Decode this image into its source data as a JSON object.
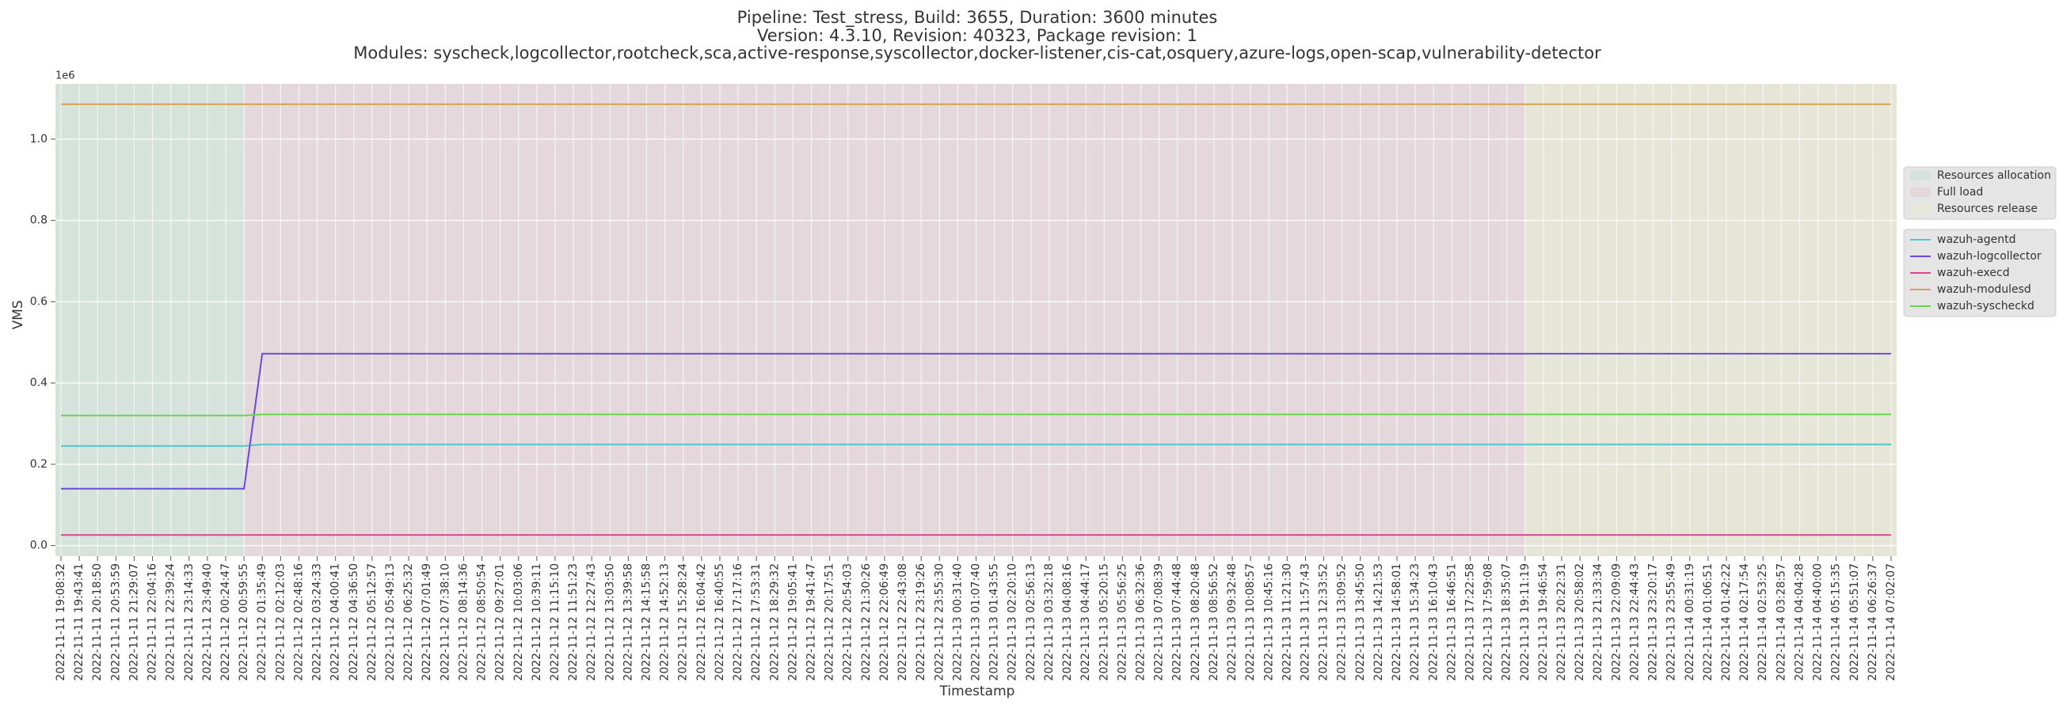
{
  "chart_data": {
    "type": "line",
    "title": [
      "Pipeline: Test_stress, Build: 3655, Duration: 3600 minutes",
      "Version: 4.3.10, Revision: 40323, Package revision: 1",
      "Modules: syscheck,logcollector,rootcheck,sca,active-response,syscollector,docker-listener,cis-cat,osquery,azure-logs,open-scap,vulnerability-detector"
    ],
    "x_label": "Timestamp",
    "y_label": "VMS",
    "y_offset_label": "1e6",
    "categories": [
      "2022-11-11 19:08:32",
      "2022-11-11 19:43:41",
      "2022-11-11 20:18:50",
      "2022-11-11 20:53:59",
      "2022-11-11 21:29:07",
      "2022-11-11 22:04:16",
      "2022-11-11 22:39:24",
      "2022-11-11 23:14:33",
      "2022-11-11 23:49:40",
      "2022-11-12 00:24:47",
      "2022-11-12 00:59:55",
      "2022-11-12 01:35:49",
      "2022-11-12 02:12:03",
      "2022-11-12 02:48:16",
      "2022-11-12 03:24:33",
      "2022-11-12 04:00:41",
      "2022-11-12 04:36:50",
      "2022-11-12 05:12:57",
      "2022-11-12 05:49:13",
      "2022-11-12 06:25:32",
      "2022-11-12 07:01:49",
      "2022-11-12 07:38:10",
      "2022-11-12 08:14:36",
      "2022-11-12 08:50:54",
      "2022-11-12 09:27:01",
      "2022-11-12 10:03:06",
      "2022-11-12 10:39:11",
      "2022-11-12 11:15:10",
      "2022-11-12 11:51:23",
      "2022-11-12 12:27:43",
      "2022-11-12 13:03:50",
      "2022-11-12 13:39:58",
      "2022-11-12 14:15:58",
      "2022-11-12 14:52:13",
      "2022-11-12 15:28:24",
      "2022-11-12 16:04:42",
      "2022-11-12 16:40:55",
      "2022-11-12 17:17:16",
      "2022-11-12 17:53:31",
      "2022-11-12 18:29:32",
      "2022-11-12 19:05:41",
      "2022-11-12 19:41:47",
      "2022-11-12 20:17:51",
      "2022-11-12 20:54:03",
      "2022-11-12 21:30:26",
      "2022-11-12 22:06:49",
      "2022-11-12 22:43:08",
      "2022-11-12 23:19:26",
      "2022-11-12 23:55:30",
      "2022-11-13 00:31:40",
      "2022-11-13 01:07:40",
      "2022-11-13 01:43:55",
      "2022-11-13 02:20:10",
      "2022-11-13 02:56:13",
      "2022-11-13 03:32:18",
      "2022-11-13 04:08:16",
      "2022-11-13 04:44:17",
      "2022-11-13 05:20:15",
      "2022-11-13 05:56:25",
      "2022-11-13 06:32:36",
      "2022-11-13 07:08:39",
      "2022-11-13 07:44:48",
      "2022-11-13 08:20:48",
      "2022-11-13 08:56:52",
      "2022-11-13 09:32:48",
      "2022-11-13 10:08:57",
      "2022-11-13 10:45:16",
      "2022-11-13 11:21:30",
      "2022-11-13 11:57:43",
      "2022-11-13 12:33:52",
      "2022-11-13 13:09:52",
      "2022-11-13 13:45:50",
      "2022-11-13 14:21:53",
      "2022-11-13 14:58:01",
      "2022-11-13 15:34:23",
      "2022-11-13 16:10:43",
      "2022-11-13 16:46:51",
      "2022-11-13 17:22:58",
      "2022-11-13 17:59:08",
      "2022-11-13 18:35:07",
      "2022-11-13 19:11:19",
      "2022-11-13 19:46:54",
      "2022-11-13 20:22:31",
      "2022-11-13 20:58:02",
      "2022-11-13 21:33:34",
      "2022-11-13 22:09:09",
      "2022-11-13 22:44:43",
      "2022-11-13 23:20:17",
      "2022-11-13 23:55:49",
      "2022-11-14 00:31:19",
      "2022-11-14 01:06:51",
      "2022-11-14 01:42:22",
      "2022-11-14 02:17:54",
      "2022-11-14 02:53:25",
      "2022-11-14 03:28:57",
      "2022-11-14 04:04:28",
      "2022-11-14 04:40:00",
      "2022-11-14 05:15:35",
      "2022-11-14 05:51:07",
      "2022-11-14 06:26:37",
      "2022-11-14 07:02:07"
    ],
    "spans": [
      {
        "name": "Resources allocation",
        "start": 0,
        "end": 10,
        "color": "#d6e2dc"
      },
      {
        "name": "Full load",
        "start": 10,
        "end": 80,
        "color": "#e5d8dc"
      },
      {
        "name": "Resources release",
        "start": 80,
        "end": 100,
        "color": "#e5e5d8"
      }
    ],
    "series": [
      {
        "name": "wazuh-agentd",
        "color": "#52c6c9",
        "values": [
          0.245,
          0.245,
          0.245,
          0.245,
          0.245,
          0.245,
          0.245,
          0.245,
          0.245,
          0.245,
          0.245,
          0.249,
          0.249,
          0.249,
          0.249,
          0.249,
          0.249,
          0.249,
          0.249,
          0.249,
          0.249,
          0.249,
          0.249,
          0.249,
          0.249,
          0.249,
          0.249,
          0.249,
          0.249,
          0.249,
          0.249,
          0.249,
          0.249,
          0.249,
          0.249,
          0.249,
          0.249,
          0.249,
          0.249,
          0.249,
          0.249,
          0.249,
          0.249,
          0.249,
          0.249,
          0.249,
          0.249,
          0.249,
          0.249,
          0.249,
          0.249,
          0.249,
          0.249,
          0.249,
          0.249,
          0.249,
          0.249,
          0.249,
          0.249,
          0.249,
          0.249,
          0.249,
          0.249,
          0.249,
          0.249,
          0.249,
          0.249,
          0.249,
          0.249,
          0.249,
          0.249,
          0.249,
          0.249,
          0.249,
          0.249,
          0.249,
          0.249,
          0.249,
          0.249,
          0.249,
          0.249,
          0.249,
          0.249,
          0.249,
          0.249,
          0.249,
          0.249,
          0.249,
          0.249,
          0.249,
          0.249,
          0.249,
          0.249,
          0.249,
          0.249,
          0.249,
          0.249,
          0.249,
          0.249,
          0.249,
          0.249
        ]
      },
      {
        "name": "wazuh-logcollector",
        "color": "#6a48dc",
        "values": [
          0.14,
          0.14,
          0.14,
          0.14,
          0.14,
          0.14,
          0.14,
          0.14,
          0.14,
          0.14,
          0.14,
          0.472,
          0.472,
          0.472,
          0.472,
          0.472,
          0.472,
          0.472,
          0.472,
          0.472,
          0.472,
          0.472,
          0.472,
          0.472,
          0.472,
          0.472,
          0.472,
          0.472,
          0.472,
          0.472,
          0.472,
          0.472,
          0.472,
          0.472,
          0.472,
          0.472,
          0.472,
          0.472,
          0.472,
          0.472,
          0.472,
          0.472,
          0.472,
          0.472,
          0.472,
          0.472,
          0.472,
          0.472,
          0.472,
          0.472,
          0.472,
          0.472,
          0.472,
          0.472,
          0.472,
          0.472,
          0.472,
          0.472,
          0.472,
          0.472,
          0.472,
          0.472,
          0.472,
          0.472,
          0.472,
          0.472,
          0.472,
          0.472,
          0.472,
          0.472,
          0.472,
          0.472,
          0.472,
          0.472,
          0.472,
          0.472,
          0.472,
          0.472,
          0.472,
          0.472,
          0.472,
          0.472,
          0.472,
          0.472,
          0.472,
          0.472,
          0.472,
          0.472,
          0.472,
          0.472,
          0.472,
          0.472,
          0.472,
          0.472,
          0.472,
          0.472,
          0.472,
          0.472,
          0.472,
          0.472,
          0.472
        ]
      },
      {
        "name": "wazuh-execd",
        "color": "#d9468c",
        "values": [
          0.026,
          0.026,
          0.026,
          0.026,
          0.026,
          0.026,
          0.026,
          0.026,
          0.026,
          0.026,
          0.026,
          0.026,
          0.026,
          0.026,
          0.026,
          0.026,
          0.026,
          0.026,
          0.026,
          0.026,
          0.026,
          0.026,
          0.026,
          0.026,
          0.026,
          0.026,
          0.026,
          0.026,
          0.026,
          0.026,
          0.026,
          0.026,
          0.026,
          0.026,
          0.026,
          0.026,
          0.026,
          0.026,
          0.026,
          0.026,
          0.026,
          0.026,
          0.026,
          0.026,
          0.026,
          0.026,
          0.026,
          0.026,
          0.026,
          0.026,
          0.026,
          0.026,
          0.026,
          0.026,
          0.026,
          0.026,
          0.026,
          0.026,
          0.026,
          0.026,
          0.026,
          0.026,
          0.026,
          0.026,
          0.026,
          0.026,
          0.026,
          0.026,
          0.026,
          0.026,
          0.026,
          0.026,
          0.026,
          0.026,
          0.026,
          0.026,
          0.026,
          0.026,
          0.026,
          0.026,
          0.026,
          0.026,
          0.026,
          0.026,
          0.026,
          0.026,
          0.026,
          0.026,
          0.026,
          0.026,
          0.026,
          0.026,
          0.026,
          0.026,
          0.026,
          0.026,
          0.026,
          0.026,
          0.026,
          0.026,
          0.026
        ]
      },
      {
        "name": "wazuh-modulesd",
        "color": "#d8a24e",
        "values": [
          1.086,
          1.086,
          1.086,
          1.086,
          1.086,
          1.086,
          1.086,
          1.086,
          1.086,
          1.086,
          1.086,
          1.086,
          1.086,
          1.086,
          1.086,
          1.086,
          1.086,
          1.086,
          1.086,
          1.086,
          1.086,
          1.086,
          1.086,
          1.086,
          1.086,
          1.086,
          1.086,
          1.086,
          1.086,
          1.086,
          1.086,
          1.086,
          1.086,
          1.086,
          1.086,
          1.086,
          1.086,
          1.086,
          1.086,
          1.086,
          1.086,
          1.086,
          1.086,
          1.086,
          1.086,
          1.086,
          1.086,
          1.086,
          1.086,
          1.086,
          1.086,
          1.086,
          1.086,
          1.086,
          1.086,
          1.086,
          1.086,
          1.086,
          1.086,
          1.086,
          1.086,
          1.086,
          1.086,
          1.086,
          1.086,
          1.086,
          1.086,
          1.086,
          1.086,
          1.086,
          1.086,
          1.086,
          1.086,
          1.086,
          1.086,
          1.086,
          1.086,
          1.086,
          1.086,
          1.086,
          1.086,
          1.086,
          1.086,
          1.086,
          1.086,
          1.086,
          1.086,
          1.086,
          1.086,
          1.086,
          1.086,
          1.086,
          1.086,
          1.086,
          1.086,
          1.086,
          1.086,
          1.086,
          1.086,
          1.086,
          1.086
        ]
      },
      {
        "name": "wazuh-syscheckd",
        "color": "#6cd44e",
        "values": [
          0.32,
          0.32,
          0.32,
          0.32,
          0.32,
          0.32,
          0.32,
          0.32,
          0.32,
          0.32,
          0.32,
          0.323,
          0.323,
          0.323,
          0.323,
          0.323,
          0.323,
          0.323,
          0.323,
          0.323,
          0.323,
          0.323,
          0.323,
          0.323,
          0.323,
          0.323,
          0.323,
          0.323,
          0.323,
          0.323,
          0.323,
          0.323,
          0.323,
          0.323,
          0.323,
          0.323,
          0.323,
          0.323,
          0.323,
          0.323,
          0.323,
          0.323,
          0.323,
          0.323,
          0.323,
          0.323,
          0.323,
          0.323,
          0.323,
          0.323,
          0.323,
          0.323,
          0.323,
          0.323,
          0.323,
          0.323,
          0.323,
          0.323,
          0.323,
          0.323,
          0.323,
          0.323,
          0.323,
          0.323,
          0.323,
          0.323,
          0.323,
          0.323,
          0.323,
          0.323,
          0.323,
          0.323,
          0.323,
          0.323,
          0.323,
          0.323,
          0.323,
          0.323,
          0.323,
          0.323,
          0.323,
          0.323,
          0.323,
          0.323,
          0.323,
          0.323,
          0.323,
          0.323,
          0.323,
          0.323,
          0.323,
          0.323,
          0.323,
          0.323,
          0.323,
          0.323,
          0.323,
          0.323,
          0.323,
          0.323,
          0.323
        ]
      }
    ],
    "ylim": [
      -0.026,
      1.136
    ],
    "yticks": [
      {
        "value": 0,
        "label": "0.0"
      },
      0.2,
      0.4,
      0.6,
      0.8,
      {
        "value": 1,
        "label": "1.0"
      }
    ],
    "grid": true,
    "legend": "right"
  }
}
